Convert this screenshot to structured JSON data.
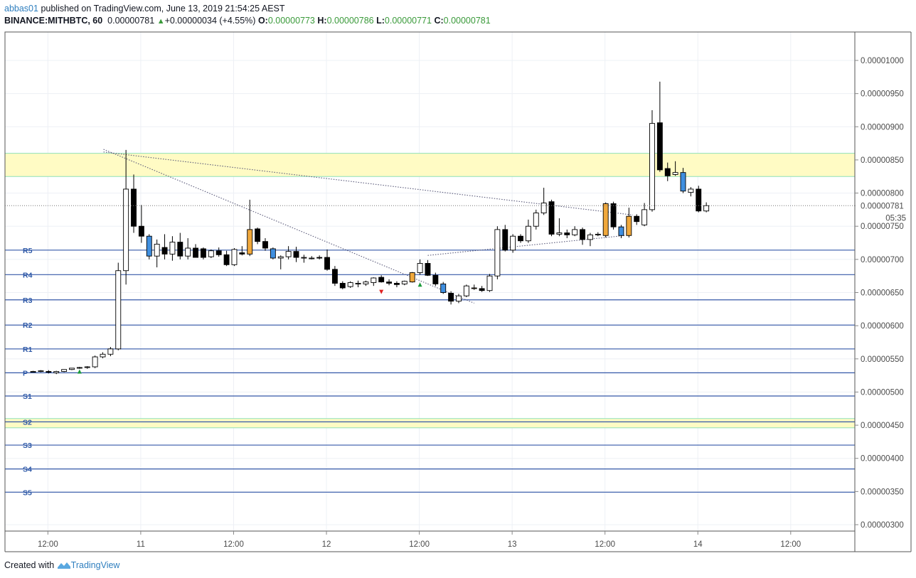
{
  "header": {
    "user": "abbas01",
    "published": " published on TradingView.com, June 13, 2019 21:54:25 AEST",
    "symbol": "BINANCE:MITHBTC, 60",
    "last": "0.00000781",
    "change": "+0.00000034 (+4.55%)",
    "o_label": "O:",
    "o_value": "0.00000773",
    "h_label": "H:",
    "h_value": "0.00000786",
    "l_label": "L:",
    "l_value": "0.00000771",
    "c_label": "C:",
    "c_value": "0.00000781"
  },
  "footer": {
    "created_with": "Created with",
    "brand": "TradingView"
  },
  "colors": {
    "up": "#ffffff",
    "down": "#000000",
    "highlight_orange": "#f0a83c",
    "highlight_blue": "#3f8fe0",
    "pivot_line": "#3458a8",
    "zone_fill": "#fffbc4",
    "zone_border": "#8fe0b8",
    "grid": "#edf0f5",
    "trend": "#5a5a7a"
  },
  "chart_data": {
    "type": "candlestick",
    "x_ticks": [
      "12:00",
      "11",
      "12:00",
      "12",
      "12:00",
      "13",
      "12:00",
      "14",
      "12:00"
    ],
    "y_ticks": [
      "0.00001000",
      "0.00000950",
      "0.00000900",
      "0.00000850",
      "0.00000800",
      "0.00000781",
      "0.00000750",
      "0.00000700",
      "0.00000650",
      "0.00000600",
      "0.00000550",
      "0.00000500",
      "0.00000450",
      "0.00000400",
      "0.00000350",
      "0.00000300"
    ],
    "ylim": [
      2.92e-06,
      1.035e-05
    ],
    "time_badge": "05:35",
    "pivots": [
      {
        "label": "R5",
        "value": 7.14e-06
      },
      {
        "label": "R4",
        "value": 6.77e-06
      },
      {
        "label": "R3",
        "value": 6.39e-06
      },
      {
        "label": "R2",
        "value": 6.01e-06
      },
      {
        "label": "R1",
        "value": 5.65e-06
      },
      {
        "label": "P",
        "value": 5.29e-06
      },
      {
        "label": "S1",
        "value": 4.94e-06
      },
      {
        "label": "S2",
        "value": 4.55e-06
      },
      {
        "label": "S3",
        "value": 4.2e-06
      },
      {
        "label": "S4",
        "value": 3.84e-06
      },
      {
        "label": "S5",
        "value": 3.49e-06
      }
    ],
    "zones": [
      {
        "from": 8.25e-06,
        "to": 8.6e-06
      },
      {
        "from": 4.46e-06,
        "to": 4.6e-06
      }
    ],
    "trendlines": [
      {
        "from": [
          0.1,
          8.66e-06
        ],
        "to": [
          48.0,
          6.34e-06
        ]
      },
      {
        "from": [
          0.1,
          8.62e-06
        ],
        "to": [
          68.5,
          7.67e-06
        ]
      },
      {
        "from": [
          42.0,
          7.06e-06
        ],
        "to": [
          67.5,
          7.36e-06
        ]
      }
    ],
    "markers": [
      {
        "i": -3,
        "kind": "up",
        "value": 5.31e-06
      },
      {
        "i": 36,
        "kind": "down",
        "value": 6.51e-06
      },
      {
        "i": 41,
        "kind": "up",
        "value": 6.62e-06
      }
    ],
    "candles": [
      {
        "i": -9,
        "o": 5.31e-06,
        "h": 5.32e-06,
        "l": 5.3e-06,
        "c": 5.31e-06
      },
      {
        "i": -8,
        "o": 5.31e-06,
        "h": 5.33e-06,
        "l": 5.3e-06,
        "c": 5.32e-06
      },
      {
        "i": -7,
        "o": 5.31e-06,
        "h": 5.33e-06,
        "l": 5.28e-06,
        "c": 5.3e-06
      },
      {
        "i": -6,
        "o": 5.29e-06,
        "h": 5.32e-06,
        "l": 5.27e-06,
        "c": 5.31e-06
      },
      {
        "i": -5,
        "o": 5.31e-06,
        "h": 5.34e-06,
        "l": 5.3e-06,
        "c": 5.34e-06
      },
      {
        "i": -4,
        "o": 5.34e-06,
        "h": 5.36e-06,
        "l": 5.33e-06,
        "c": 5.36e-06
      },
      {
        "i": -3,
        "o": 5.36e-06,
        "h": 5.38e-06,
        "l": 5.35e-06,
        "c": 5.37e-06
      },
      {
        "i": -2,
        "o": 5.37e-06,
        "h": 5.39e-06,
        "l": 5.35e-06,
        "c": 5.38e-06
      },
      {
        "i": -1,
        "o": 5.38e-06,
        "h": 5.55e-06,
        "l": 5.36e-06,
        "c": 5.53e-06
      },
      {
        "i": 0,
        "o": 5.53e-06,
        "h": 5.6e-06,
        "l": 5.51e-06,
        "c": 5.57e-06
      },
      {
        "i": 1,
        "o": 5.57e-06,
        "h": 5.68e-06,
        "l": 5.54e-06,
        "c": 5.65e-06
      },
      {
        "i": 2,
        "o": 5.65e-06,
        "h": 6.95e-06,
        "l": 5.63e-06,
        "c": 6.83e-06
      },
      {
        "i": 3,
        "o": 6.83e-06,
        "h": 8.65e-06,
        "l": 6.62e-06,
        "c": 8.06e-06
      },
      {
        "i": 4,
        "o": 8.06e-06,
        "h": 8.28e-06,
        "l": 7.4e-06,
        "c": 7.5e-06
      },
      {
        "i": 5,
        "o": 7.5e-06,
        "h": 7.82e-06,
        "l": 7.25e-06,
        "c": 7.35e-06
      },
      {
        "i": 6,
        "o": 7.35e-06,
        "h": 7.38e-06,
        "l": 7e-06,
        "c": 7.05e-06,
        "color": "blue"
      },
      {
        "i": 7,
        "o": 7.05e-06,
        "h": 7.3e-06,
        "l": 6.88e-06,
        "c": 7.23e-06
      },
      {
        "i": 8,
        "o": 7.18e-06,
        "h": 7.38e-06,
        "l": 7e-06,
        "c": 7.08e-06
      },
      {
        "i": 9,
        "o": 7.08e-06,
        "h": 7.35e-06,
        "l": 6.98e-06,
        "c": 7.26e-06
      },
      {
        "i": 10,
        "o": 7.26e-06,
        "h": 7.4e-06,
        "l": 7e-06,
        "c": 7.05e-06
      },
      {
        "i": 11,
        "o": 7.05e-06,
        "h": 7.32e-06,
        "l": 7e-06,
        "c": 7.17e-06
      },
      {
        "i": 12,
        "o": 7.17e-06,
        "h": 7.23e-06,
        "l": 7.03e-06,
        "c": 7.03e-06
      },
      {
        "i": 13,
        "o": 7.16e-06,
        "h": 7.18e-06,
        "l": 7e-06,
        "c": 7.03e-06
      },
      {
        "i": 14,
        "o": 7.04e-06,
        "h": 7.15e-06,
        "l": 7.02e-06,
        "c": 7.13e-06
      },
      {
        "i": 15,
        "o": 7.13e-06,
        "h": 7.18e-06,
        "l": 7.04e-06,
        "c": 7.07e-06
      },
      {
        "i": 16,
        "o": 7.07e-06,
        "h": 7.13e-06,
        "l": 6.9e-06,
        "c": 6.92e-06
      },
      {
        "i": 17,
        "o": 6.92e-06,
        "h": 7.17e-06,
        "l": 6.9e-06,
        "c": 7.15e-06
      },
      {
        "i": 18,
        "o": 7.1e-06,
        "h": 7.2e-06,
        "l": 7.06e-06,
        "c": 7.08e-06
      },
      {
        "i": 19,
        "o": 7.08e-06,
        "h": 7.9e-06,
        "l": 7.05e-06,
        "c": 7.45e-06,
        "color": "orange"
      },
      {
        "i": 20,
        "o": 7.46e-06,
        "h": 7.48e-06,
        "l": 7.23e-06,
        "c": 7.27e-06
      },
      {
        "i": 21,
        "o": 7.27e-06,
        "h": 7.32e-06,
        "l": 7.13e-06,
        "c": 7.17e-06
      },
      {
        "i": 22,
        "o": 7.16e-06,
        "h": 7.18e-06,
        "l": 7e-06,
        "c": 7.02e-06,
        "color": "blue"
      },
      {
        "i": 23,
        "o": 7.02e-06,
        "h": 7.06e-06,
        "l": 6.85e-06,
        "c": 7.04e-06
      },
      {
        "i": 24,
        "o": 7.04e-06,
        "h": 7.2e-06,
        "l": 7e-06,
        "c": 7.12e-06
      },
      {
        "i": 25,
        "o": 7.12e-06,
        "h": 7.19e-06,
        "l": 6.96e-06,
        "c": 7.03e-06
      },
      {
        "i": 26,
        "o": 7.02e-06,
        "h": 7.07e-06,
        "l": 6.95e-06,
        "c": 7.03e-06
      },
      {
        "i": 27,
        "o": 7.02e-06,
        "h": 7.05e-06,
        "l": 7e-06,
        "c": 7.02e-06
      },
      {
        "i": 28,
        "o": 7.03e-06,
        "h": 7.06e-06,
        "l": 7e-06,
        "c": 7.02e-06
      },
      {
        "i": 29,
        "o": 7.03e-06,
        "h": 7.15e-06,
        "l": 6.83e-06,
        "c": 6.85e-06
      },
      {
        "i": 30,
        "o": 6.85e-06,
        "h": 6.9e-06,
        "l": 6.6e-06,
        "c": 6.64e-06
      },
      {
        "i": 31,
        "o": 6.64e-06,
        "h": 6.67e-06,
        "l": 6.55e-06,
        "c": 6.57e-06
      },
      {
        "i": 32,
        "o": 6.59e-06,
        "h": 6.67e-06,
        "l": 6.57e-06,
        "c": 6.65e-06
      },
      {
        "i": 33,
        "o": 6.63e-06,
        "h": 6.68e-06,
        "l": 6.58e-06,
        "c": 6.64e-06
      },
      {
        "i": 34,
        "o": 6.63e-06,
        "h": 6.68e-06,
        "l": 6.6e-06,
        "c": 6.66e-06
      },
      {
        "i": 35,
        "o": 6.65e-06,
        "h": 6.73e-06,
        "l": 6.6e-06,
        "c": 6.72e-06
      },
      {
        "i": 36,
        "o": 6.73e-06,
        "h": 6.76e-06,
        "l": 6.65e-06,
        "c": 6.66e-06
      },
      {
        "i": 37,
        "o": 6.66e-06,
        "h": 6.7e-06,
        "l": 6.61e-06,
        "c": 6.64e-06
      },
      {
        "i": 38,
        "o": 6.64e-06,
        "h": 6.67e-06,
        "l": 6.58e-06,
        "c": 6.62e-06
      },
      {
        "i": 39,
        "o": 6.63e-06,
        "h": 6.68e-06,
        "l": 6.61e-06,
        "c": 6.67e-06
      },
      {
        "i": 40,
        "o": 6.66e-06,
        "h": 6.81e-06,
        "l": 6.65e-06,
        "c": 6.8e-06,
        "color": "orange"
      },
      {
        "i": 41,
        "o": 6.8e-06,
        "h": 7e-06,
        "l": 6.77e-06,
        "c": 6.94e-06
      },
      {
        "i": 42,
        "o": 6.94e-06,
        "h": 6.99e-06,
        "l": 6.75e-06,
        "c": 6.76e-06
      },
      {
        "i": 43,
        "o": 6.76e-06,
        "h": 6.8e-06,
        "l": 6.6e-06,
        "c": 6.63e-06
      },
      {
        "i": 44,
        "o": 6.63e-06,
        "h": 6.66e-06,
        "l": 6.48e-06,
        "c": 6.5e-06,
        "color": "blue"
      },
      {
        "i": 45,
        "o": 6.49e-06,
        "h": 6.52e-06,
        "l": 6.32e-06,
        "c": 6.37e-06
      },
      {
        "i": 46,
        "o": 6.37e-06,
        "h": 6.48e-06,
        "l": 6.34e-06,
        "c": 6.45e-06
      },
      {
        "i": 47,
        "o": 6.45e-06,
        "h": 6.62e-06,
        "l": 6.43e-06,
        "c": 6.6e-06
      },
      {
        "i": 48,
        "o": 6.57e-06,
        "h": 6.62e-06,
        "l": 6.54e-06,
        "c": 6.57e-06,
        "color": "orange"
      },
      {
        "i": 49,
        "o": 6.56e-06,
        "h": 6.6e-06,
        "l": 6.51e-06,
        "c": 6.53e-06
      },
      {
        "i": 50,
        "o": 6.53e-06,
        "h": 6.78e-06,
        "l": 6.51e-06,
        "c": 6.75e-06
      },
      {
        "i": 51,
        "o": 6.75e-06,
        "h": 7.5e-06,
        "l": 6.7e-06,
        "c": 7.45e-06
      },
      {
        "i": 52,
        "o": 7.45e-06,
        "h": 7.52e-06,
        "l": 7.12e-06,
        "c": 7.14e-06
      },
      {
        "i": 53,
        "o": 7.14e-06,
        "h": 7.38e-06,
        "l": 7.1e-06,
        "c": 7.35e-06
      },
      {
        "i": 54,
        "o": 7.35e-06,
        "h": 7.38e-06,
        "l": 7.25e-06,
        "c": 7.28e-06
      },
      {
        "i": 55,
        "o": 7.28e-06,
        "h": 7.6e-06,
        "l": 7.25e-06,
        "c": 7.5e-06
      },
      {
        "i": 56,
        "o": 7.5e-06,
        "h": 7.75e-06,
        "l": 7.45e-06,
        "c": 7.7e-06
      },
      {
        "i": 57,
        "o": 7.7e-06,
        "h": 8.08e-06,
        "l": 7.67e-06,
        "c": 7.85e-06
      },
      {
        "i": 58,
        "o": 7.87e-06,
        "h": 7.9e-06,
        "l": 7.35e-06,
        "c": 7.38e-06
      },
      {
        "i": 59,
        "o": 7.38e-06,
        "h": 7.62e-06,
        "l": 7.35e-06,
        "c": 7.4e-06
      },
      {
        "i": 60,
        "o": 7.4e-06,
        "h": 7.45e-06,
        "l": 7.32e-06,
        "c": 7.37e-06
      },
      {
        "i": 61,
        "o": 7.37e-06,
        "h": 7.5e-06,
        "l": 7.35e-06,
        "c": 7.45e-06
      },
      {
        "i": 62,
        "o": 7.45e-06,
        "h": 7.48e-06,
        "l": 7.22e-06,
        "c": 7.3e-06
      },
      {
        "i": 63,
        "o": 7.3e-06,
        "h": 7.4e-06,
        "l": 7.2e-06,
        "c": 7.37e-06
      },
      {
        "i": 64,
        "o": 7.37e-06,
        "h": 7.41e-06,
        "l": 7.35e-06,
        "c": 7.38e-06
      },
      {
        "i": 65,
        "o": 7.36e-06,
        "h": 7.86e-06,
        "l": 7.33e-06,
        "c": 7.84e-06,
        "color": "orange"
      },
      {
        "i": 66,
        "o": 7.84e-06,
        "h": 7.87e-06,
        "l": 7.45e-06,
        "c": 7.49e-06
      },
      {
        "i": 67,
        "o": 7.49e-06,
        "h": 7.52e-06,
        "l": 7.32e-06,
        "c": 7.36e-06,
        "color": "blue"
      },
      {
        "i": 68,
        "o": 7.36e-06,
        "h": 7.78e-06,
        "l": 7.33e-06,
        "c": 7.65e-06,
        "color": "orange"
      },
      {
        "i": 69,
        "o": 7.65e-06,
        "h": 7.68e-06,
        "l": 7.52e-06,
        "c": 7.57e-06
      },
      {
        "i": 70,
        "o": 7.52e-06,
        "h": 7.85e-06,
        "l": 7.5e-06,
        "c": 7.75e-06
      },
      {
        "i": 71,
        "o": 7.75e-06,
        "h": 9.25e-06,
        "l": 7.72e-06,
        "c": 9.05e-06
      },
      {
        "i": 72,
        "o": 9.06e-06,
        "h": 9.68e-06,
        "l": 8.32e-06,
        "c": 8.35e-06
      },
      {
        "i": 73,
        "o": 8.37e-06,
        "h": 8.46e-06,
        "l": 8.18e-06,
        "c": 8.26e-06
      },
      {
        "i": 74,
        "o": 8.28e-06,
        "h": 8.48e-06,
        "l": 8.26e-06,
        "c": 8.31e-06
      },
      {
        "i": 75,
        "o": 8.31e-06,
        "h": 8.38e-06,
        "l": 8e-06,
        "c": 8.03e-06,
        "color": "blue"
      },
      {
        "i": 76,
        "o": 8.01e-06,
        "h": 8.09e-06,
        "l": 7.95e-06,
        "c": 8.06e-06
      },
      {
        "i": 77,
        "o": 8.06e-06,
        "h": 8.11e-06,
        "l": 7.71e-06,
        "c": 7.73e-06
      },
      {
        "i": 78,
        "o": 7.73e-06,
        "h": 7.86e-06,
        "l": 7.71e-06,
        "c": 7.81e-06
      }
    ]
  }
}
